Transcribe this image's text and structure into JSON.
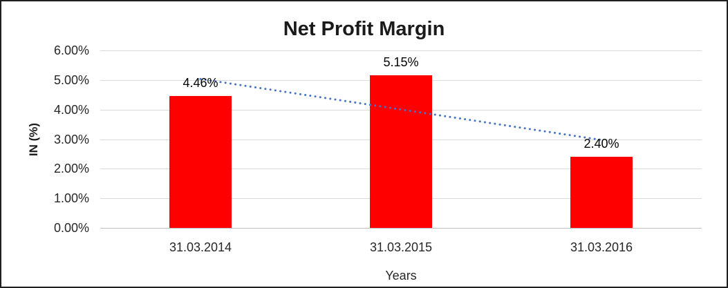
{
  "chart_data": {
    "type": "bar",
    "title": "Net Profit Margin",
    "xlabel": "Years",
    "ylabel": "IN (%)",
    "categories": [
      "31.03.2014",
      "31.03.2015",
      "31.03.2016"
    ],
    "values": [
      4.46,
      5.15,
      2.4
    ],
    "data_labels": [
      "4.46%",
      "5.15%",
      "2.40%"
    ],
    "ylim": [
      0,
      6
    ],
    "yticks": [
      {
        "value": 0,
        "label": "0.00%"
      },
      {
        "value": 1,
        "label": "1.00%"
      },
      {
        "value": 2,
        "label": "2.00%"
      },
      {
        "value": 3,
        "label": "3.00%"
      },
      {
        "value": 4,
        "label": "4.00%"
      },
      {
        "value": 5,
        "label": "5.00%"
      },
      {
        "value": 6,
        "label": "6.00%"
      }
    ],
    "grid": true,
    "legend_position": "none",
    "trendline": {
      "type": "linear",
      "style": "dotted",
      "series": "Net Profit Margin",
      "endpoint_values": [
        5.03,
        2.97
      ]
    },
    "colors": {
      "bar": "#ff0000",
      "trendline": "#4472c4",
      "gridline": "#d9d9d9",
      "axis_line": "#bfbfbf",
      "text": "#262626",
      "background": "#ffffff",
      "frame_border": "#1f1f1f"
    }
  }
}
